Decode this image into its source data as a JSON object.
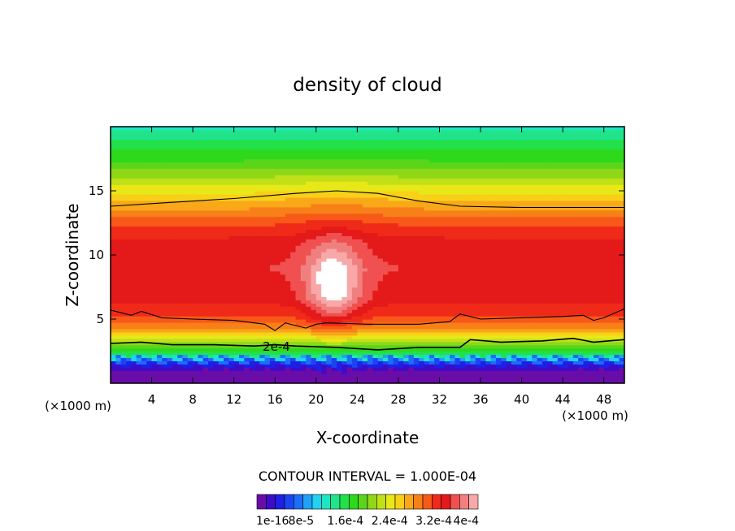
{
  "chart_data": {
    "type": "heatmap",
    "title": "density of cloud",
    "xlabel": "X-coordinate",
    "ylabel": "Z-coordinate",
    "x_unit": "(×1000 m)",
    "z_unit": "(×1000 m)",
    "xlim": [
      0,
      50
    ],
    "ylim": [
      0,
      20
    ],
    "x_ticks": [
      4,
      8,
      12,
      16,
      20,
      24,
      28,
      32,
      36,
      40,
      44,
      48
    ],
    "y_ticks": [
      5,
      10,
      15
    ],
    "contour_interval_text": "CONTOUR INTERVAL = 1.000E-04",
    "contour_label": "2e-4",
    "colorbar_labels": [
      "1e-16",
      "8e-5",
      "1.6e-4",
      "2.4e-4",
      "3.2e-4",
      "4e-4"
    ],
    "colorbar_colors": [
      "#6a0ca8",
      "#3c0dc8",
      "#1f1fe6",
      "#1c45f2",
      "#1c6ef8",
      "#1fa2f8",
      "#22d2f0",
      "#1de6c0",
      "#21e48a",
      "#22e04a",
      "#2ed81c",
      "#5ad51a",
      "#8ed818",
      "#c0e018",
      "#e8e818",
      "#f8d018",
      "#f8a818",
      "#f88018",
      "#f85818",
      "#f02a18",
      "#e41a1a",
      "#f05050",
      "#f08080",
      "#f8a8a8"
    ],
    "profile": [
      {
        "z": 0.0,
        "value": 0.0
      },
      {
        "z": 0.8,
        "value": 1e-05
      },
      {
        "z": 1.5,
        "value": 5e-05
      },
      {
        "z": 2.0,
        "value": 0.00012
      },
      {
        "z": 2.7,
        "value": 0.00018
      },
      {
        "z": 3.3,
        "value": 0.00022
      },
      {
        "z": 4.2,
        "value": 0.00028
      },
      {
        "z": 5.0,
        "value": 0.00031
      },
      {
        "z": 6.5,
        "value": 0.00034
      },
      {
        "z": 9.0,
        "value": 0.00035
      },
      {
        "z": 11.0,
        "value": 0.00034
      },
      {
        "z": 12.5,
        "value": 0.00031
      },
      {
        "z": 14.0,
        "value": 0.00027
      },
      {
        "z": 15.5,
        "value": 0.00023
      },
      {
        "z": 17.0,
        "value": 0.00019
      },
      {
        "z": 18.5,
        "value": 0.00016
      },
      {
        "z": 20.0,
        "value": 0.00013
      }
    ],
    "plume": {
      "x": 21.7,
      "z": 7.8,
      "peak_value": 0.0004
    },
    "contour_lines": [
      {
        "name": "upper",
        "points": [
          [
            0,
            13.8
          ],
          [
            6,
            14.1
          ],
          [
            12,
            14.4
          ],
          [
            18,
            14.8
          ],
          [
            22,
            15.0
          ],
          [
            26,
            14.8
          ],
          [
            30,
            14.2
          ],
          [
            34,
            13.8
          ],
          [
            40,
            13.7
          ],
          [
            50,
            13.7
          ]
        ]
      },
      {
        "name": "middle",
        "points": [
          [
            0,
            5.7
          ],
          [
            2,
            5.3
          ],
          [
            3,
            5.6
          ],
          [
            5,
            5.1
          ],
          [
            8,
            5.0
          ],
          [
            12,
            4.9
          ],
          [
            15,
            4.6
          ],
          [
            16,
            4.1
          ],
          [
            17,
            4.7
          ],
          [
            19,
            4.3
          ],
          [
            20,
            4.6
          ],
          [
            21,
            4.7
          ],
          [
            25,
            4.6
          ],
          [
            30,
            4.6
          ],
          [
            33,
            4.8
          ],
          [
            34,
            5.4
          ],
          [
            36,
            5.0
          ],
          [
            40,
            5.1
          ],
          [
            44,
            5.2
          ],
          [
            46,
            5.3
          ],
          [
            47,
            4.9
          ],
          [
            48,
            5.1
          ],
          [
            50,
            5.8
          ]
        ]
      },
      {
        "name": "lower",
        "points": [
          [
            0,
            3.1
          ],
          [
            3,
            3.2
          ],
          [
            6,
            3.0
          ],
          [
            10,
            3.0
          ],
          [
            14,
            2.9
          ],
          [
            16,
            3.0
          ],
          [
            18,
            2.9
          ],
          [
            22,
            2.8
          ],
          [
            26,
            2.6
          ],
          [
            30,
            2.8
          ],
          [
            34,
            2.8
          ],
          [
            35,
            3.4
          ],
          [
            38,
            3.2
          ],
          [
            42,
            3.3
          ],
          [
            45,
            3.5
          ],
          [
            47,
            3.2
          ],
          [
            50,
            3.4
          ]
        ]
      }
    ]
  }
}
